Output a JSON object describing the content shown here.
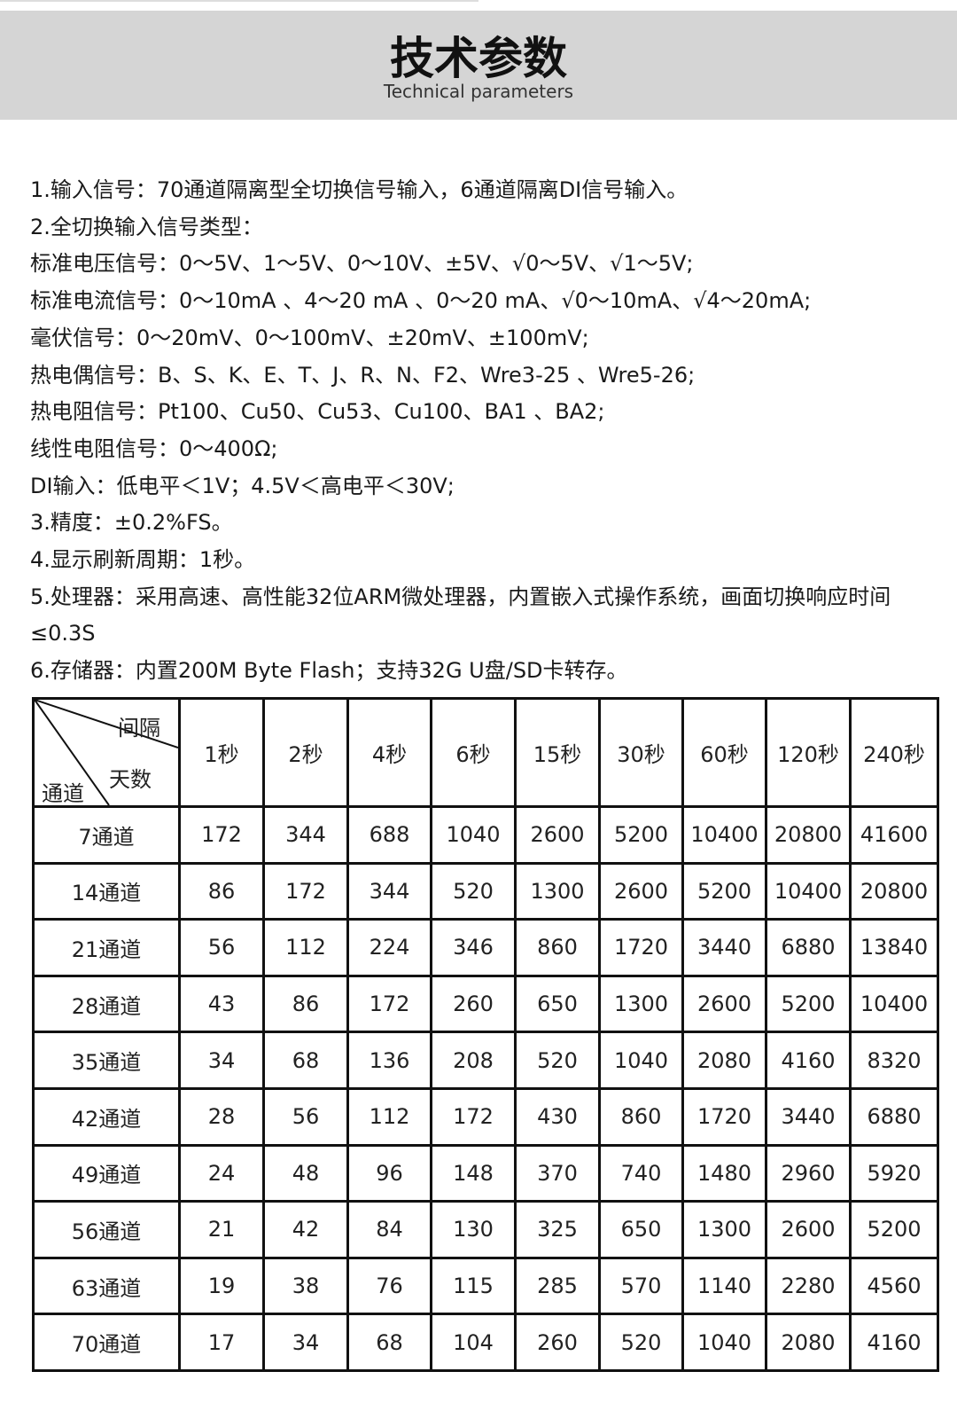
{
  "header": {
    "title": "技术参数",
    "subtitle": "Technical parameters"
  },
  "specs": [
    "1.输入信号：70通道隔离型全切换信号输入，6通道隔离DI信号输入。",
    "2.全切换输入信号类型：",
    "标准电压信号：0～5V、1～5V、0～10V、±5V、√0～5V、√1～5V;",
    "标准电流信号：0～10mA 、4～20 mA 、0～20 mA、√0～10mA、√4～20mA;",
    "毫伏信号：0～20mV、0～100mV、±20mV、±100mV;",
    "热电偶信号：B、S、K、E、T、J、R、N、F2、Wre3-25 、Wre5-26;",
    "热电阻信号：Pt100、Cu50、Cu53、Cu100、BA1 、BA2;",
    "线性电阻信号：0～400Ω;",
    "DI输入：低电平＜1V；4.5V＜高电平＜30V;",
    "3.精度：±0.2%FS。",
    "4.显示刷新周期：1秒。",
    "5.处理器：采用高速、高性能32位ARM微处理器，内置嵌入式操作系统，画面切换响应时间≤0.3S",
    "6.存储器：内置200M Byte Flash；支持32G U盘/SD卡转存。"
  ],
  "table": {
    "corner": {
      "interval": "间隔",
      "days": "天数",
      "channel": "通道"
    },
    "columns": [
      "1秒",
      "2秒",
      "4秒",
      "6秒",
      "15秒",
      "30秒",
      "60秒",
      "120秒",
      "240秒"
    ],
    "rows": [
      {
        "label": "7通道",
        "values": [
          172,
          344,
          688,
          1040,
          2600,
          5200,
          10400,
          20800,
          41600
        ]
      },
      {
        "label": "14通道",
        "values": [
          86,
          172,
          344,
          520,
          1300,
          2600,
          5200,
          10400,
          20800
        ]
      },
      {
        "label": "21通道",
        "values": [
          56,
          112,
          224,
          346,
          860,
          1720,
          3440,
          6880,
          13840
        ]
      },
      {
        "label": "28通道",
        "values": [
          43,
          86,
          172,
          260,
          650,
          1300,
          2600,
          5200,
          10400
        ]
      },
      {
        "label": "35通道",
        "values": [
          34,
          68,
          136,
          208,
          520,
          1040,
          2080,
          4160,
          8320
        ]
      },
      {
        "label": "42通道",
        "values": [
          28,
          56,
          112,
          172,
          430,
          860,
          1720,
          3440,
          6880
        ]
      },
      {
        "label": "49通道",
        "values": [
          24,
          48,
          96,
          148,
          370,
          740,
          1480,
          2960,
          5920
        ]
      },
      {
        "label": "56通道",
        "values": [
          21,
          42,
          84,
          130,
          325,
          650,
          1300,
          2600,
          5200
        ]
      },
      {
        "label": "63通道",
        "values": [
          19,
          38,
          76,
          115,
          285,
          570,
          1140,
          2280,
          4560
        ]
      },
      {
        "label": "70通道",
        "values": [
          17,
          34,
          68,
          104,
          260,
          520,
          1040,
          2080,
          4160
        ]
      }
    ]
  }
}
